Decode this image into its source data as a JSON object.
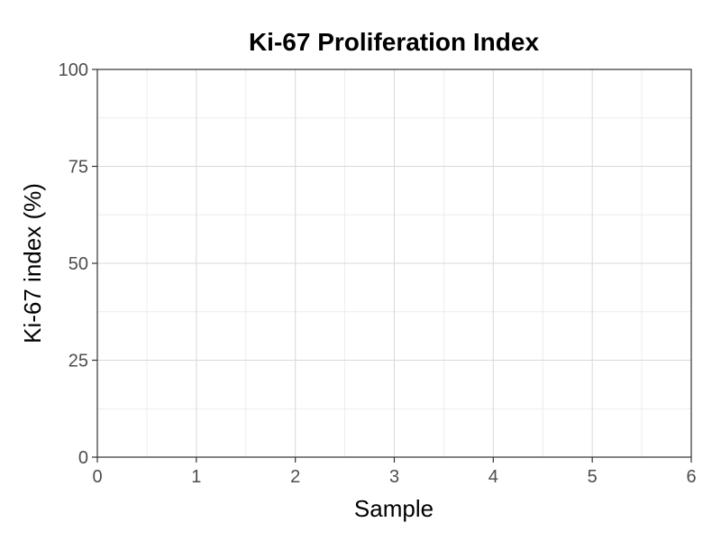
{
  "chart_data": {
    "type": "scatter",
    "title": "Ki-67 Proliferation Index",
    "xlabel": "Sample",
    "ylabel": "Ki-67 index (%)",
    "xlim": [
      0,
      6
    ],
    "ylim": [
      0,
      100
    ],
    "x_ticks": [
      0,
      1,
      2,
      3,
      4,
      5,
      6
    ],
    "y_ticks": [
      0,
      25,
      50,
      75,
      100
    ],
    "grid": true,
    "series": []
  }
}
